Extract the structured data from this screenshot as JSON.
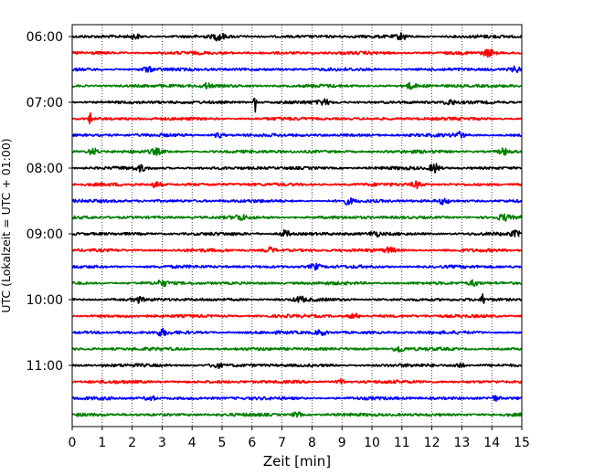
{
  "chart_data": {
    "type": "line",
    "title": "",
    "xlabel": "Zeit  [min]",
    "ylabel": "UTC (Lokalzeit = UTC + 01:00)",
    "xlim": [
      0,
      15
    ],
    "x_ticks": [
      "0",
      "1",
      "2",
      "3",
      "4",
      "5",
      "6",
      "7",
      "8",
      "9",
      "10",
      "11",
      "12",
      "13",
      "14",
      "15"
    ],
    "y_tick_labels": [
      "06:00",
      "07:00",
      "08:00",
      "09:00",
      "10:00",
      "11:00"
    ],
    "grid": "vertical dotted",
    "trace_colors": [
      "#000000",
      "#ff0000",
      "#0000ff",
      "#008000"
    ],
    "series": [
      {
        "start": "06:00",
        "color": "#000000",
        "events": [
          [
            2.1,
            1.0
          ],
          [
            4.9,
            1.4
          ],
          [
            11.0,
            1.3
          ]
        ]
      },
      {
        "start": "06:15",
        "color": "#ff0000",
        "events": [
          [
            13.9,
            1.4
          ]
        ]
      },
      {
        "start": "06:30",
        "color": "#0000ff",
        "events": [
          [
            2.5,
            1.0
          ],
          [
            14.8,
            1.0
          ]
        ]
      },
      {
        "start": "06:45",
        "color": "#008000",
        "events": [
          [
            4.5,
            1.0
          ],
          [
            11.3,
            1.1
          ]
        ]
      },
      {
        "start": "07:00",
        "color": "#000000",
        "events": [
          [
            6.1,
            4.0
          ],
          [
            8.4,
            1.0
          ],
          [
            12.6,
            1.0
          ]
        ]
      },
      {
        "start": "07:15",
        "color": "#ff0000",
        "events": [
          [
            0.6,
            2.8
          ]
        ]
      },
      {
        "start": "07:30",
        "color": "#0000ff",
        "events": [
          [
            4.9,
            1.0
          ],
          [
            12.9,
            1.2
          ]
        ]
      },
      {
        "start": "07:45",
        "color": "#008000",
        "events": [
          [
            0.7,
            1.3
          ],
          [
            2.8,
            1.0
          ],
          [
            14.4,
            1.2
          ]
        ]
      },
      {
        "start": "08:00",
        "color": "#000000",
        "events": [
          [
            2.3,
            1.0
          ],
          [
            12.1,
            1.8
          ]
        ]
      },
      {
        "start": "08:15",
        "color": "#ff0000",
        "events": [
          [
            2.8,
            1.2
          ],
          [
            11.5,
            1.3
          ]
        ]
      },
      {
        "start": "08:30",
        "color": "#0000ff",
        "events": [
          [
            9.2,
            1.1
          ],
          [
            12.4,
            1.1
          ]
        ]
      },
      {
        "start": "08:45",
        "color": "#008000",
        "events": [
          [
            5.6,
            1.0
          ],
          [
            14.4,
            1.1
          ]
        ]
      },
      {
        "start": "09:00",
        "color": "#000000",
        "events": [
          [
            7.1,
            1.4
          ],
          [
            10.1,
            1.0
          ],
          [
            14.8,
            1.0
          ]
        ]
      },
      {
        "start": "09:15",
        "color": "#ff0000",
        "events": [
          [
            6.6,
            1.1
          ],
          [
            10.6,
            1.0
          ]
        ]
      },
      {
        "start": "09:30",
        "color": "#0000ff",
        "events": [
          [
            8.1,
            1.2
          ]
        ]
      },
      {
        "start": "09:45",
        "color": "#008000",
        "events": [
          [
            3.0,
            1.0
          ],
          [
            13.4,
            1.0
          ]
        ]
      },
      {
        "start": "10:00",
        "color": "#000000",
        "events": [
          [
            2.2,
            1.0
          ],
          [
            7.6,
            1.0
          ],
          [
            13.7,
            2.8
          ]
        ]
      },
      {
        "start": "10:15",
        "color": "#ff0000",
        "events": [
          [
            9.4,
            1.0
          ]
        ]
      },
      {
        "start": "10:30",
        "color": "#0000ff",
        "events": [
          [
            3.0,
            1.2
          ],
          [
            8.3,
            1.1
          ]
        ]
      },
      {
        "start": "10:45",
        "color": "#008000",
        "events": [
          [
            10.9,
            1.3
          ]
        ]
      },
      {
        "start": "11:00",
        "color": "#000000",
        "events": [
          [
            4.8,
            1.0
          ],
          [
            12.9,
            1.0
          ]
        ]
      },
      {
        "start": "11:15",
        "color": "#ff0000",
        "events": [
          [
            9.0,
            1.0
          ]
        ]
      },
      {
        "start": "11:30",
        "color": "#0000ff",
        "events": [
          [
            2.6,
            1.0
          ],
          [
            14.1,
            1.0
          ]
        ]
      },
      {
        "start": "11:45",
        "color": "#008000",
        "events": [
          [
            7.5,
            1.0
          ]
        ]
      }
    ]
  }
}
